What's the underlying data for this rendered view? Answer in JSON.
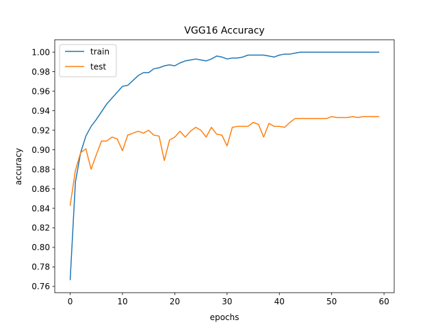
{
  "chart_data": {
    "type": "line",
    "title": "VGG16 Accuracy",
    "xlabel": "epochs",
    "ylabel": "accuracy",
    "xlim": [
      -2.95,
      61.95
    ],
    "ylim": [
      0.7536,
      1.0127
    ],
    "xticks": [
      0,
      10,
      20,
      30,
      40,
      50,
      60
    ],
    "yticks": [
      0.76,
      0.78,
      0.8,
      0.82,
      0.84,
      0.86,
      0.88,
      0.9,
      0.92,
      0.94,
      0.96,
      0.98,
      1.0
    ],
    "grid": false,
    "legend_position": "top-left",
    "series": [
      {
        "name": "train",
        "color": "#1f77b4",
        "values": [
          0.767,
          0.867,
          0.897,
          0.914,
          0.924,
          0.931,
          0.939,
          0.947,
          0.953,
          0.959,
          0.965,
          0.966,
          0.971,
          0.976,
          0.979,
          0.979,
          0.983,
          0.984,
          0.986,
          0.987,
          0.986,
          0.989,
          0.991,
          0.992,
          0.993,
          0.992,
          0.991,
          0.993,
          0.996,
          0.995,
          0.993,
          0.994,
          0.994,
          0.995,
          0.997,
          0.997,
          0.997,
          0.997,
          0.996,
          0.995,
          0.997,
          0.998,
          0.998,
          0.999,
          1.0,
          1.0,
          1.0,
          1.0,
          1.0,
          1.0,
          1.0,
          1.0,
          1.0,
          1.0,
          1.0,
          1.0,
          1.0,
          1.0,
          1.0,
          1.0
        ]
      },
      {
        "name": "test",
        "color": "#ff7f0e",
        "values": [
          0.843,
          0.879,
          0.897,
          0.901,
          0.88,
          0.895,
          0.909,
          0.909,
          0.913,
          0.911,
          0.899,
          0.915,
          0.917,
          0.919,
          0.917,
          0.92,
          0.915,
          0.914,
          0.889,
          0.91,
          0.913,
          0.919,
          0.913,
          0.919,
          0.923,
          0.92,
          0.913,
          0.923,
          0.916,
          0.915,
          0.904,
          0.923,
          0.924,
          0.924,
          0.924,
          0.928,
          0.926,
          0.913,
          0.927,
          0.924,
          0.924,
          0.923,
          0.928,
          0.932,
          0.932,
          0.932,
          0.932,
          0.932,
          0.932,
          0.932,
          0.934,
          0.933,
          0.933,
          0.933,
          0.934,
          0.933,
          0.934,
          0.934,
          0.934,
          0.934
        ]
      }
    ]
  }
}
